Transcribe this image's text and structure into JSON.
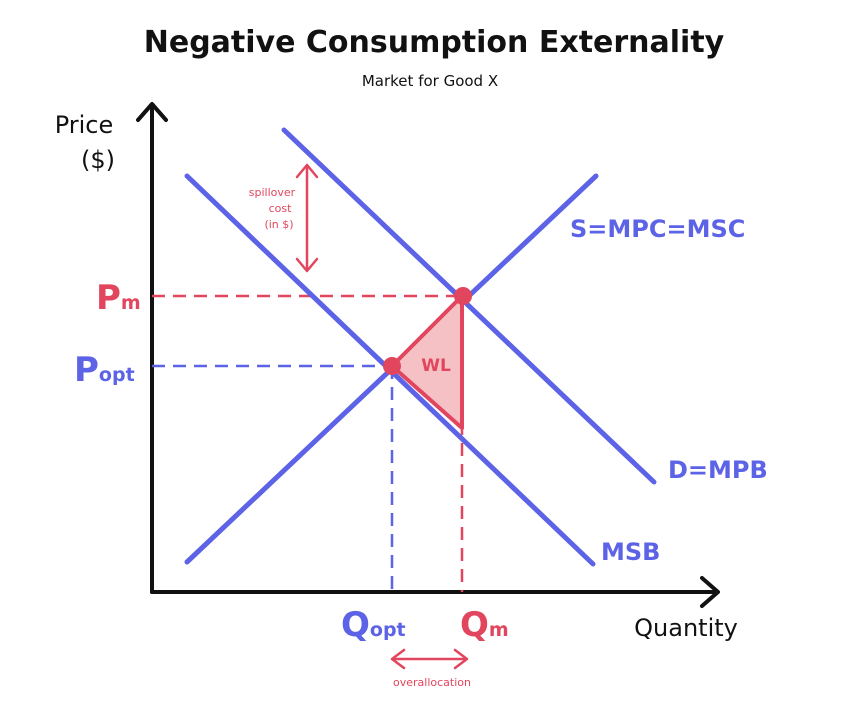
{
  "title": "Negative Consumption Externality",
  "subtitle": "Market for Good X",
  "axes": {
    "y_label_line1": "Price",
    "y_label_line2": "($)",
    "x_label": "Quantity"
  },
  "curves": {
    "supply": "S=MPC=MSC",
    "demand": "D=MPB",
    "msb": "MSB"
  },
  "price_labels": {
    "pm_main": "P",
    "pm_sub": "m",
    "popt_main": "P",
    "popt_sub": "opt"
  },
  "quantity_labels": {
    "qopt_main": "Q",
    "qopt_sub": "opt",
    "qm_main": "Q",
    "qm_sub": "m"
  },
  "annotations": {
    "spillover_line1": "spillover",
    "spillover_line2": "cost",
    "spillover_line3": "(in $)",
    "welfare_loss": "WL",
    "overallocation": "overallocation"
  },
  "colors": {
    "blue": "#5d63e6",
    "red": "#e2465e",
    "wl_fill": "#f6c1c5",
    "axis": "#111111"
  }
}
